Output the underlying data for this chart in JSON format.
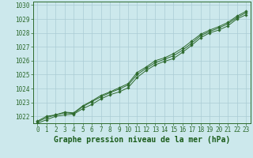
{
  "title": "Graphe pression niveau de la mer (hPa)",
  "x_values": [
    0,
    1,
    2,
    3,
    4,
    5,
    6,
    7,
    8,
    9,
    10,
    11,
    12,
    13,
    14,
    15,
    16,
    17,
    18,
    19,
    20,
    21,
    22,
    23
  ],
  "line1": [
    1021.5,
    1021.75,
    1022.0,
    1022.1,
    1022.15,
    1022.55,
    1022.85,
    1023.25,
    1023.55,
    1023.75,
    1024.05,
    1024.8,
    1025.3,
    1025.7,
    1025.95,
    1026.15,
    1026.6,
    1027.1,
    1027.65,
    1028.0,
    1028.2,
    1028.5,
    1029.0,
    1029.3
  ],
  "line2": [
    1021.6,
    1021.9,
    1022.1,
    1022.25,
    1022.2,
    1022.7,
    1023.05,
    1023.4,
    1023.7,
    1023.95,
    1024.25,
    1025.0,
    1025.45,
    1025.85,
    1026.1,
    1026.35,
    1026.75,
    1027.25,
    1027.8,
    1028.1,
    1028.35,
    1028.65,
    1029.1,
    1029.45
  ],
  "line3": [
    1021.65,
    1022.0,
    1022.1,
    1022.3,
    1022.25,
    1022.75,
    1023.1,
    1023.5,
    1023.75,
    1024.05,
    1024.35,
    1025.15,
    1025.55,
    1026.0,
    1026.2,
    1026.5,
    1026.9,
    1027.4,
    1027.9,
    1028.2,
    1028.45,
    1028.75,
    1029.2,
    1029.55
  ],
  "ylim": [
    1021.5,
    1030.25
  ],
  "yticks": [
    1022,
    1023,
    1024,
    1025,
    1026,
    1027,
    1028,
    1029,
    1030
  ],
  "xticks": [
    0,
    1,
    2,
    3,
    4,
    5,
    6,
    7,
    8,
    9,
    10,
    11,
    12,
    13,
    14,
    15,
    16,
    17,
    18,
    19,
    20,
    21,
    22,
    23
  ],
  "xtick_labels": [
    "0",
    "1",
    "2",
    "3",
    "4",
    "5",
    "6",
    "7",
    "8",
    "9",
    "10",
    "11",
    "12",
    "13",
    "14",
    "15",
    "16",
    "17",
    "18",
    "19",
    "20",
    "21",
    "22",
    "23"
  ],
  "line_color": "#2d6a2d",
  "marker_color": "#2d6a2d",
  "bg_color": "#cce8ec",
  "grid_color": "#aaccd4",
  "title_color": "#1a5c1a",
  "axis_color": "#2d6a2d",
  "tick_color": "#2d6a2d",
  "title_fontsize": 7.0,
  "tick_fontsize": 5.5
}
